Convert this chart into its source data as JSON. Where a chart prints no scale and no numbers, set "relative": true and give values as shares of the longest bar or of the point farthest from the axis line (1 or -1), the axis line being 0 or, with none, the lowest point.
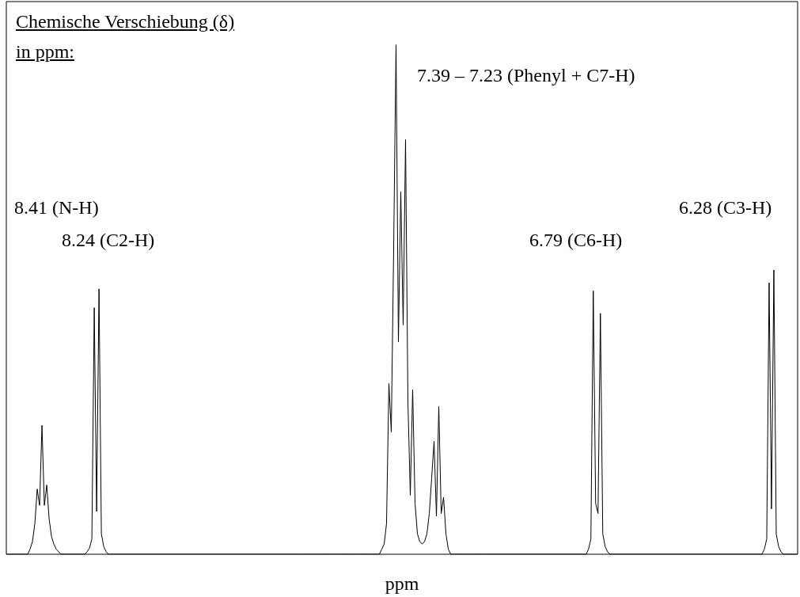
{
  "chart_data": {
    "type": "line",
    "relative": true,
    "color": "#000000",
    "title": "Chemische Verschiebung (δ)\nin ppm:",
    "xlabel": "ppm",
    "annotations": [
      "7.39 – 7.23 (Phenyl + C7-H)",
      "8.41 (N-H)",
      "8.24 (C2-H)",
      "6.79 (C6-H)",
      "6.28 (C3-H)"
    ],
    "categories": [
      null,
      null,
      null,
      null,
      null,
      null,
      null,
      null,
      null,
      null,
      null,
      null,
      null,
      null,
      null,
      null,
      null,
      null,
      null,
      null,
      null,
      null,
      null,
      null,
      null,
      null,
      null,
      null,
      null,
      null,
      null,
      null,
      null,
      null,
      null,
      null,
      null,
      null,
      null,
      null,
      null,
      null,
      null,
      null,
      null,
      null,
      null,
      null,
      null,
      null,
      null,
      null,
      null,
      null,
      null,
      null,
      null,
      null,
      null,
      null,
      null,
      null,
      null,
      null,
      null,
      null,
      null,
      null,
      null,
      null,
      null,
      null,
      null,
      null,
      null,
      null,
      null,
      null,
      null,
      null,
      null,
      null,
      null,
      null,
      null,
      null,
      null,
      null,
      null,
      null,
      null,
      null,
      null,
      null,
      null,
      null,
      null,
      null,
      null,
      null,
      null,
      null,
      null,
      null,
      null,
      null,
      null,
      null,
      null,
      null,
      null,
      null,
      null,
      null,
      null,
      null,
      null,
      null,
      null,
      null,
      null,
      null,
      null,
      null,
      null,
      null,
      null,
      null,
      null,
      null,
      null,
      null,
      null,
      null,
      null,
      null,
      null,
      null,
      null,
      null,
      null,
      null,
      null,
      null,
      null,
      null,
      null,
      null,
      null,
      null,
      null,
      null,
      null,
      null,
      null,
      null,
      null,
      null,
      null,
      null,
      null,
      null,
      null,
      null,
      null,
      null,
      null,
      null,
      null,
      null,
      null,
      null,
      null,
      null,
      null,
      null,
      null,
      null,
      null,
      null,
      null,
      null,
      null,
      null,
      null,
      null,
      null,
      null,
      null,
      null,
      null,
      null,
      null,
      null,
      null,
      null,
      null,
      null,
      null,
      null,
      null,
      null,
      null,
      null,
      null,
      null,
      null,
      null,
      null,
      null,
      null,
      null,
      null,
      null,
      null,
      null,
      null,
      null,
      null,
      null,
      null,
      null,
      null,
      null,
      null,
      null,
      null,
      null,
      null,
      null,
      null,
      null,
      null,
      null,
      null,
      null,
      null,
      null,
      null,
      null,
      null,
      null,
      null,
      null,
      null,
      null,
      null,
      null,
      null,
      null,
      null,
      null,
      null,
      null,
      null,
      null,
      null,
      null,
      null,
      null,
      null,
      null,
      null,
      null,
      null,
      null,
      null,
      null,
      null,
      null,
      null,
      null,
      null,
      null,
      null,
      null,
      null,
      null,
      null,
      null,
      null,
      null,
      null,
      null,
      null,
      null,
      null,
      null,
      null,
      null,
      null,
      null,
      null,
      null,
      null,
      null,
      null,
      null,
      null,
      null,
      null,
      null,
      null,
      null,
      null,
      null,
      null,
      null,
      null,
      null,
      null,
      null,
      null,
      null,
      null,
      null,
      null,
      null,
      null,
      null,
      null,
      null,
      null,
      null,
      null,
      null,
      null,
      null,
      null,
      null,
      null,
      null,
      null,
      null
    ],
    "values": [
      0,
      0,
      0,
      0,
      0,
      0,
      0,
      0,
      0,
      0,
      0.01,
      0.025,
      0.06,
      0.128,
      0.096,
      0.253,
      0.096,
      0.136,
      0.07,
      0.035,
      0.02,
      0.01,
      0.005,
      0,
      0,
      0,
      0,
      0,
      0,
      0,
      0,
      0,
      0,
      0,
      0.005,
      0.012,
      0.03,
      0.484,
      0.084,
      0.521,
      0.04,
      0.015,
      0.005,
      0,
      0,
      0,
      0,
      0,
      0,
      0,
      0,
      0,
      0,
      0,
      0,
      0,
      0,
      0,
      0,
      0,
      0,
      0,
      0,
      0,
      0,
      0,
      0,
      0,
      0,
      0,
      0,
      0,
      0,
      0,
      0,
      0,
      0,
      0,
      0,
      0,
      0,
      0,
      0,
      0,
      0,
      0,
      0,
      0,
      0,
      0,
      0,
      0,
      0,
      0,
      0,
      0,
      0,
      0,
      0,
      0,
      0,
      0,
      0,
      0,
      0,
      0,
      0,
      0,
      0,
      0,
      0,
      0,
      0,
      0,
      0,
      0,
      0,
      0,
      0,
      0,
      0,
      0,
      0,
      0,
      0,
      0,
      0,
      0,
      0,
      0,
      0,
      0,
      0,
      0,
      0,
      0,
      0,
      0,
      0,
      0,
      0,
      0,
      0,
      0,
      0,
      0,
      0,
      0,
      0,
      0,
      0,
      0,
      0,
      0,
      0,
      0,
      0,
      0,
      0.01,
      0.02,
      0.06,
      0.335,
      0.24,
      0.6,
      1,
      0.417,
      0.712,
      0.45,
      0.814,
      0.3,
      0.116,
      0.323,
      0.1,
      0.04,
      0.025,
      0.02,
      0.025,
      0.04,
      0.08,
      0.15,
      0.222,
      0.075,
      0.29,
      0.08,
      0.112,
      0.04,
      0.01,
      0,
      0,
      0,
      0,
      0,
      0,
      0,
      0,
      0,
      0,
      0,
      0,
      0,
      0,
      0,
      0,
      0,
      0,
      0,
      0,
      0,
      0,
      0,
      0,
      0,
      0,
      0,
      0,
      0,
      0,
      0,
      0,
      0,
      0,
      0,
      0,
      0,
      0,
      0,
      0,
      0,
      0,
      0,
      0,
      0,
      0,
      0,
      0,
      0,
      0,
      0,
      0,
      0,
      0,
      0,
      0,
      0,
      0,
      0.01,
      0.03,
      0.517,
      0.1,
      0.08,
      0.473,
      0.04,
      0.015,
      0.005,
      0,
      0,
      0,
      0,
      0,
      0,
      0,
      0,
      0,
      0,
      0,
      0,
      0,
      0,
      0,
      0,
      0,
      0,
      0,
      0,
      0,
      0,
      0,
      0,
      0,
      0,
      0,
      0,
      0,
      0,
      0,
      0,
      0,
      0,
      0,
      0,
      0,
      0,
      0,
      0,
      0,
      0,
      0,
      0,
      0,
      0,
      0,
      0,
      0,
      0,
      0,
      0,
      0,
      0,
      0,
      0,
      0,
      0,
      0,
      0,
      0,
      0,
      0,
      0,
      0,
      0.01,
      0.03,
      0.533,
      0.089,
      0.558,
      0.04,
      0.015,
      0.005,
      0,
      0,
      0,
      0,
      0,
      0,
      0
    ]
  }
}
